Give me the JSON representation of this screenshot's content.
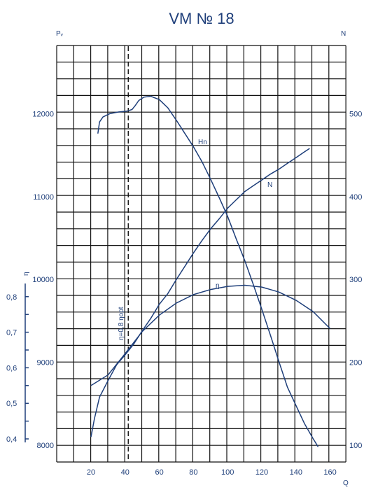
{
  "chart_data": {
    "type": "line",
    "title": "VM № 18",
    "xlabel": "Q",
    "xlim": [
      0,
      170
    ],
    "x_ticks": [
      20,
      40,
      60,
      80,
      100,
      120,
      140,
      160
    ],
    "left_axis": {
      "label": "Pᵥ",
      "lim": [
        7900,
        12900
      ],
      "ticks": [
        8000,
        9000,
        10000,
        11000,
        12000
      ]
    },
    "right_axis": {
      "label": "N",
      "lim": [
        90,
        590
      ],
      "ticks": [
        100,
        200,
        300,
        400,
        500
      ]
    },
    "eta_axis": {
      "label": "η",
      "ticks": [
        "0,4",
        "0,5",
        "0,6",
        "0,7",
        "0,8"
      ],
      "tick_values": [
        0.4,
        0.5,
        0.6,
        0.7,
        0.8
      ]
    },
    "grid": true,
    "annotation": {
      "text": "η=0,8 ηopt",
      "x": 41
    },
    "series": [
      {
        "name": "Hn",
        "axis": "left",
        "points": [
          [
            24,
            11760
          ],
          [
            25,
            11900
          ],
          [
            27,
            11960
          ],
          [
            31,
            12000
          ],
          [
            36,
            12020
          ],
          [
            41,
            12030
          ],
          [
            44,
            12050
          ],
          [
            46,
            12100
          ],
          [
            48,
            12160
          ],
          [
            51,
            12200
          ],
          [
            55,
            12210
          ],
          [
            60,
            12170
          ],
          [
            65,
            12070
          ],
          [
            70,
            11920
          ],
          [
            75,
            11760
          ],
          [
            80,
            11600
          ],
          [
            85,
            11420
          ],
          [
            90,
            11210
          ],
          [
            95,
            10990
          ],
          [
            100,
            10760
          ],
          [
            105,
            10490
          ],
          [
            110,
            10230
          ],
          [
            115,
            9940
          ],
          [
            120,
            9640
          ],
          [
            125,
            9330
          ],
          [
            130,
            9010
          ],
          [
            135,
            8700
          ],
          [
            140,
            8480
          ],
          [
            145,
            8260
          ],
          [
            150,
            8080
          ],
          [
            153,
            7980
          ]
        ]
      },
      {
        "name": "N",
        "axis": "right",
        "points": [
          [
            20,
            110
          ],
          [
            22,
            132
          ],
          [
            25,
            158
          ],
          [
            30,
            178
          ],
          [
            35,
            197
          ],
          [
            40,
            209
          ],
          [
            45,
            222
          ],
          [
            50,
            238
          ],
          [
            55,
            253
          ],
          [
            60,
            270
          ],
          [
            65,
            283
          ],
          [
            70,
            300
          ],
          [
            75,
            316
          ],
          [
            80,
            332
          ],
          [
            85,
            347
          ],
          [
            90,
            361
          ],
          [
            95,
            373
          ],
          [
            100,
            386
          ],
          [
            105,
            396
          ],
          [
            110,
            406
          ],
          [
            115,
            413
          ],
          [
            120,
            420
          ],
          [
            125,
            427
          ],
          [
            130,
            433
          ],
          [
            135,
            440
          ],
          [
            140,
            447
          ],
          [
            145,
            454
          ],
          [
            148,
            458
          ]
        ]
      },
      {
        "name": "η",
        "axis": "eta",
        "points": [
          [
            20,
            0.55
          ],
          [
            30,
            0.58
          ],
          [
            40,
            0.64
          ],
          [
            50,
            0.702
          ],
          [
            60,
            0.748
          ],
          [
            70,
            0.782
          ],
          [
            80,
            0.806
          ],
          [
            90,
            0.82
          ],
          [
            100,
            0.829
          ],
          [
            110,
            0.832
          ],
          [
            120,
            0.827
          ],
          [
            130,
            0.813
          ],
          [
            140,
            0.79
          ],
          [
            150,
            0.758
          ],
          [
            160,
            0.71
          ]
        ]
      }
    ]
  }
}
